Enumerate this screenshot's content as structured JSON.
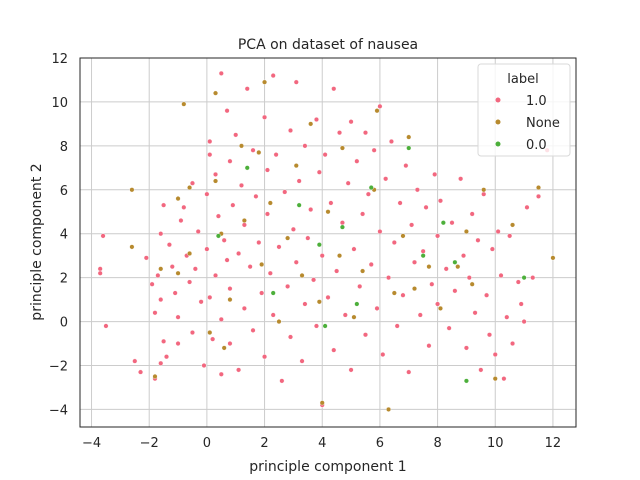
{
  "chart_data": {
    "type": "scatter",
    "title": "PCA on dataset of nausea",
    "xlabel": "principle component 1",
    "ylabel": "principle component 2",
    "xlim": [
      -4.4,
      12.8
    ],
    "ylim": [
      -4.8,
      12
    ],
    "xticks": [
      -4,
      -2,
      0,
      2,
      4,
      6,
      8,
      10,
      12
    ],
    "yticks": [
      -4,
      -2,
      0,
      2,
      4,
      6,
      8,
      10,
      12
    ],
    "grid": true,
    "legend": {
      "title": "label",
      "placement": "top-right"
    },
    "series": [
      {
        "name": "1.0",
        "color": "#f2677f",
        "points": [
          [
            -3.6,
            3.9
          ],
          [
            -3.7,
            2.4
          ],
          [
            -3.7,
            2.2
          ],
          [
            -3.5,
            -0.2
          ],
          [
            -2.5,
            -1.8
          ],
          [
            -2.3,
            -2.3
          ],
          [
            -2.1,
            2.9
          ],
          [
            -1.9,
            1.7
          ],
          [
            -1.8,
            0.4
          ],
          [
            -1.8,
            -2.6
          ],
          [
            -1.7,
            2.1
          ],
          [
            -1.6,
            4.0
          ],
          [
            -1.6,
            1.0
          ],
          [
            -1.5,
            5.3
          ],
          [
            -1.5,
            -0.9
          ],
          [
            -1.6,
            -1.9
          ],
          [
            -1.4,
            -1.6
          ],
          [
            -1.3,
            3.5
          ],
          [
            -1.2,
            2.5
          ],
          [
            -1.1,
            1.3
          ],
          [
            -1.0,
            0.2
          ],
          [
            -1.0,
            -1.0
          ],
          [
            -0.9,
            4.6
          ],
          [
            -0.8,
            5.2
          ],
          [
            -0.7,
            3.0
          ],
          [
            -0.6,
            1.8
          ],
          [
            -0.5,
            6.3
          ],
          [
            -0.5,
            -0.5
          ],
          [
            -0.4,
            2.4
          ],
          [
            -0.3,
            4.1
          ],
          [
            -0.2,
            0.9
          ],
          [
            -0.1,
            -2.0
          ],
          [
            0.0,
            5.8
          ],
          [
            0.0,
            3.3
          ],
          [
            0.1,
            8.2
          ],
          [
            0.1,
            1.1
          ],
          [
            0.1,
            7.6
          ],
          [
            0.2,
            -0.8
          ],
          [
            0.3,
            6.7
          ],
          [
            0.3,
            2.1
          ],
          [
            0.4,
            4.8
          ],
          [
            0.5,
            0.1
          ],
          [
            0.5,
            -2.4
          ],
          [
            0.5,
            11.3
          ],
          [
            0.6,
            3.7
          ],
          [
            0.7,
            9.6
          ],
          [
            0.7,
            2.8
          ],
          [
            0.8,
            7.3
          ],
          [
            0.8,
            1.5
          ],
          [
            0.8,
            -1.0
          ],
          [
            0.9,
            5.3
          ],
          [
            1.0,
            8.5
          ],
          [
            1.1,
            3.1
          ],
          [
            1.1,
            -2.2
          ],
          [
            1.2,
            6.2
          ],
          [
            1.3,
            4.4
          ],
          [
            1.3,
            0.6
          ],
          [
            1.4,
            10.6
          ],
          [
            1.5,
            2.5
          ],
          [
            1.6,
            7.8
          ],
          [
            1.6,
            -0.4
          ],
          [
            1.7,
            5.7
          ],
          [
            1.8,
            3.6
          ],
          [
            1.9,
            1.3
          ],
          [
            2.0,
            9.3
          ],
          [
            2.0,
            -1.6
          ],
          [
            2.1,
            6.9
          ],
          [
            2.1,
            4.9
          ],
          [
            2.2,
            2.2
          ],
          [
            2.3,
            0.3
          ],
          [
            2.3,
            11.2
          ],
          [
            2.4,
            7.6
          ],
          [
            2.5,
            3.4
          ],
          [
            2.6,
            -2.7
          ],
          [
            2.7,
            5.9
          ],
          [
            2.8,
            1.6
          ],
          [
            2.9,
            8.7
          ],
          [
            2.9,
            -0.7
          ],
          [
            3.0,
            4.2
          ],
          [
            3.1,
            10.9
          ],
          [
            3.1,
            2.7
          ],
          [
            3.2,
            6.4
          ],
          [
            3.3,
            -1.8
          ],
          [
            3.4,
            0.8
          ],
          [
            3.4,
            8.0
          ],
          [
            3.5,
            3.8
          ],
          [
            3.6,
            5.1
          ],
          [
            3.7,
            1.9
          ],
          [
            3.8,
            9.2
          ],
          [
            3.8,
            -0.2
          ],
          [
            3.9,
            6.8
          ],
          [
            4.0,
            3.0
          ],
          [
            4.0,
            -3.8
          ],
          [
            4.1,
            7.6
          ],
          [
            4.2,
            1.1
          ],
          [
            4.3,
            5.4
          ],
          [
            4.4,
            10.6
          ],
          [
            4.4,
            -1.3
          ],
          [
            4.5,
            2.3
          ],
          [
            4.6,
            8.6
          ],
          [
            4.7,
            4.5
          ],
          [
            4.8,
            0.3
          ],
          [
            4.9,
            6.3
          ],
          [
            5.0,
            9.1
          ],
          [
            5.0,
            -2.2
          ],
          [
            5.1,
            3.3
          ],
          [
            5.2,
            7.3
          ],
          [
            5.3,
            1.6
          ],
          [
            5.4,
            4.9
          ],
          [
            5.5,
            8.6
          ],
          [
            5.5,
            -0.6
          ],
          [
            5.6,
            5.8
          ],
          [
            5.7,
            2.6
          ],
          [
            5.8,
            7.8
          ],
          [
            5.9,
            0.6
          ],
          [
            6.0,
            4.1
          ],
          [
            6.0,
            9.8
          ],
          [
            6.1,
            -1.5
          ],
          [
            6.2,
            6.5
          ],
          [
            6.3,
            2.0
          ],
          [
            6.4,
            8.2
          ],
          [
            6.5,
            3.6
          ],
          [
            6.6,
            -0.2
          ],
          [
            6.7,
            5.4
          ],
          [
            6.8,
            1.2
          ],
          [
            6.9,
            7.1
          ],
          [
            7.0,
            -2.3
          ],
          [
            7.1,
            4.4
          ],
          [
            7.2,
            2.7
          ],
          [
            7.3,
            6.0
          ],
          [
            7.4,
            0.3
          ],
          [
            7.5,
            3.2
          ],
          [
            7.6,
            5.2
          ],
          [
            7.7,
            -1.1
          ],
          [
            7.8,
            1.7
          ],
          [
            7.9,
            6.7
          ],
          [
            8.0,
            3.9
          ],
          [
            8.0,
            0.8
          ],
          [
            8.1,
            5.5
          ],
          [
            8.3,
            2.4
          ],
          [
            8.4,
            -0.3
          ],
          [
            8.5,
            4.5
          ],
          [
            8.6,
            1.4
          ],
          [
            8.8,
            6.5
          ],
          [
            8.9,
            3.0
          ],
          [
            9.0,
            -1.2
          ],
          [
            9.1,
            2.0
          ],
          [
            9.2,
            4.9
          ],
          [
            9.3,
            0.4
          ],
          [
            9.4,
            3.7
          ],
          [
            9.5,
            -2.2
          ],
          [
            9.6,
            5.8
          ],
          [
            9.7,
            1.2
          ],
          [
            9.8,
            -0.6
          ],
          [
            9.9,
            3.3
          ],
          [
            10.0,
            -1.5
          ],
          [
            10.1,
            4.1
          ],
          [
            10.2,
            2.1
          ],
          [
            10.3,
            -2.6
          ],
          [
            10.4,
            0.2
          ],
          [
            10.5,
            3.9
          ],
          [
            10.6,
            -1.0
          ],
          [
            10.8,
            1.8
          ],
          [
            10.9,
            0.8
          ],
          [
            11.0,
            0.0
          ],
          [
            11.1,
            5.2
          ],
          [
            11.3,
            2.0
          ],
          [
            11.5,
            5.7
          ],
          [
            11.8,
            7.8
          ]
        ]
      },
      {
        "name": "None",
        "color": "#b78a2e",
        "points": [
          [
            -2.6,
            6.0
          ],
          [
            -2.6,
            3.4
          ],
          [
            -1.8,
            -2.5
          ],
          [
            -1.6,
            2.4
          ],
          [
            -1.0,
            5.6
          ],
          [
            -1.0,
            2.2
          ],
          [
            -0.8,
            9.9
          ],
          [
            -0.6,
            6.1
          ],
          [
            -0.6,
            3.1
          ],
          [
            0.1,
            -0.5
          ],
          [
            0.3,
            10.4
          ],
          [
            0.3,
            6.4
          ],
          [
            0.5,
            4.0
          ],
          [
            0.6,
            -1.2
          ],
          [
            0.8,
            1.0
          ],
          [
            1.2,
            8.0
          ],
          [
            1.3,
            4.6
          ],
          [
            1.8,
            7.7
          ],
          [
            1.9,
            2.6
          ],
          [
            2.0,
            10.9
          ],
          [
            2.2,
            5.4
          ],
          [
            2.5,
            0.0
          ],
          [
            2.8,
            3.8
          ],
          [
            3.1,
            7.1
          ],
          [
            3.3,
            2.1
          ],
          [
            3.6,
            9.0
          ],
          [
            3.9,
            0.9
          ],
          [
            4.0,
            -3.7
          ],
          [
            4.2,
            5.0
          ],
          [
            4.6,
            3.0
          ],
          [
            4.7,
            7.9
          ],
          [
            5.1,
            0.2
          ],
          [
            5.4,
            2.3
          ],
          [
            5.8,
            6.0
          ],
          [
            5.9,
            9.6
          ],
          [
            6.3,
            -4.0
          ],
          [
            6.5,
            1.3
          ],
          [
            6.8,
            3.9
          ],
          [
            7.0,
            8.4
          ],
          [
            7.2,
            1.5
          ],
          [
            7.7,
            2.5
          ],
          [
            8.1,
            0.6
          ],
          [
            8.7,
            2.5
          ],
          [
            9.0,
            4.1
          ],
          [
            9.2,
            1.7
          ],
          [
            9.6,
            6.0
          ],
          [
            10.0,
            -2.6
          ],
          [
            10.6,
            4.4
          ],
          [
            11.5,
            6.1
          ],
          [
            12.0,
            2.9
          ]
        ]
      },
      {
        "name": "0.0",
        "color": "#4caf3a",
        "points": [
          [
            0.4,
            3.9
          ],
          [
            1.4,
            7.0
          ],
          [
            3.2,
            5.3
          ],
          [
            3.9,
            3.5
          ],
          [
            4.1,
            -0.2
          ],
          [
            5.2,
            0.8
          ],
          [
            5.7,
            6.1
          ],
          [
            7.0,
            7.9
          ],
          [
            7.5,
            3.0
          ],
          [
            8.2,
            4.5
          ],
          [
            8.6,
            2.7
          ],
          [
            9.0,
            -2.7
          ],
          [
            11.0,
            2.0
          ],
          [
            4.7,
            4.3
          ],
          [
            2.3,
            1.3
          ]
        ]
      }
    ]
  }
}
